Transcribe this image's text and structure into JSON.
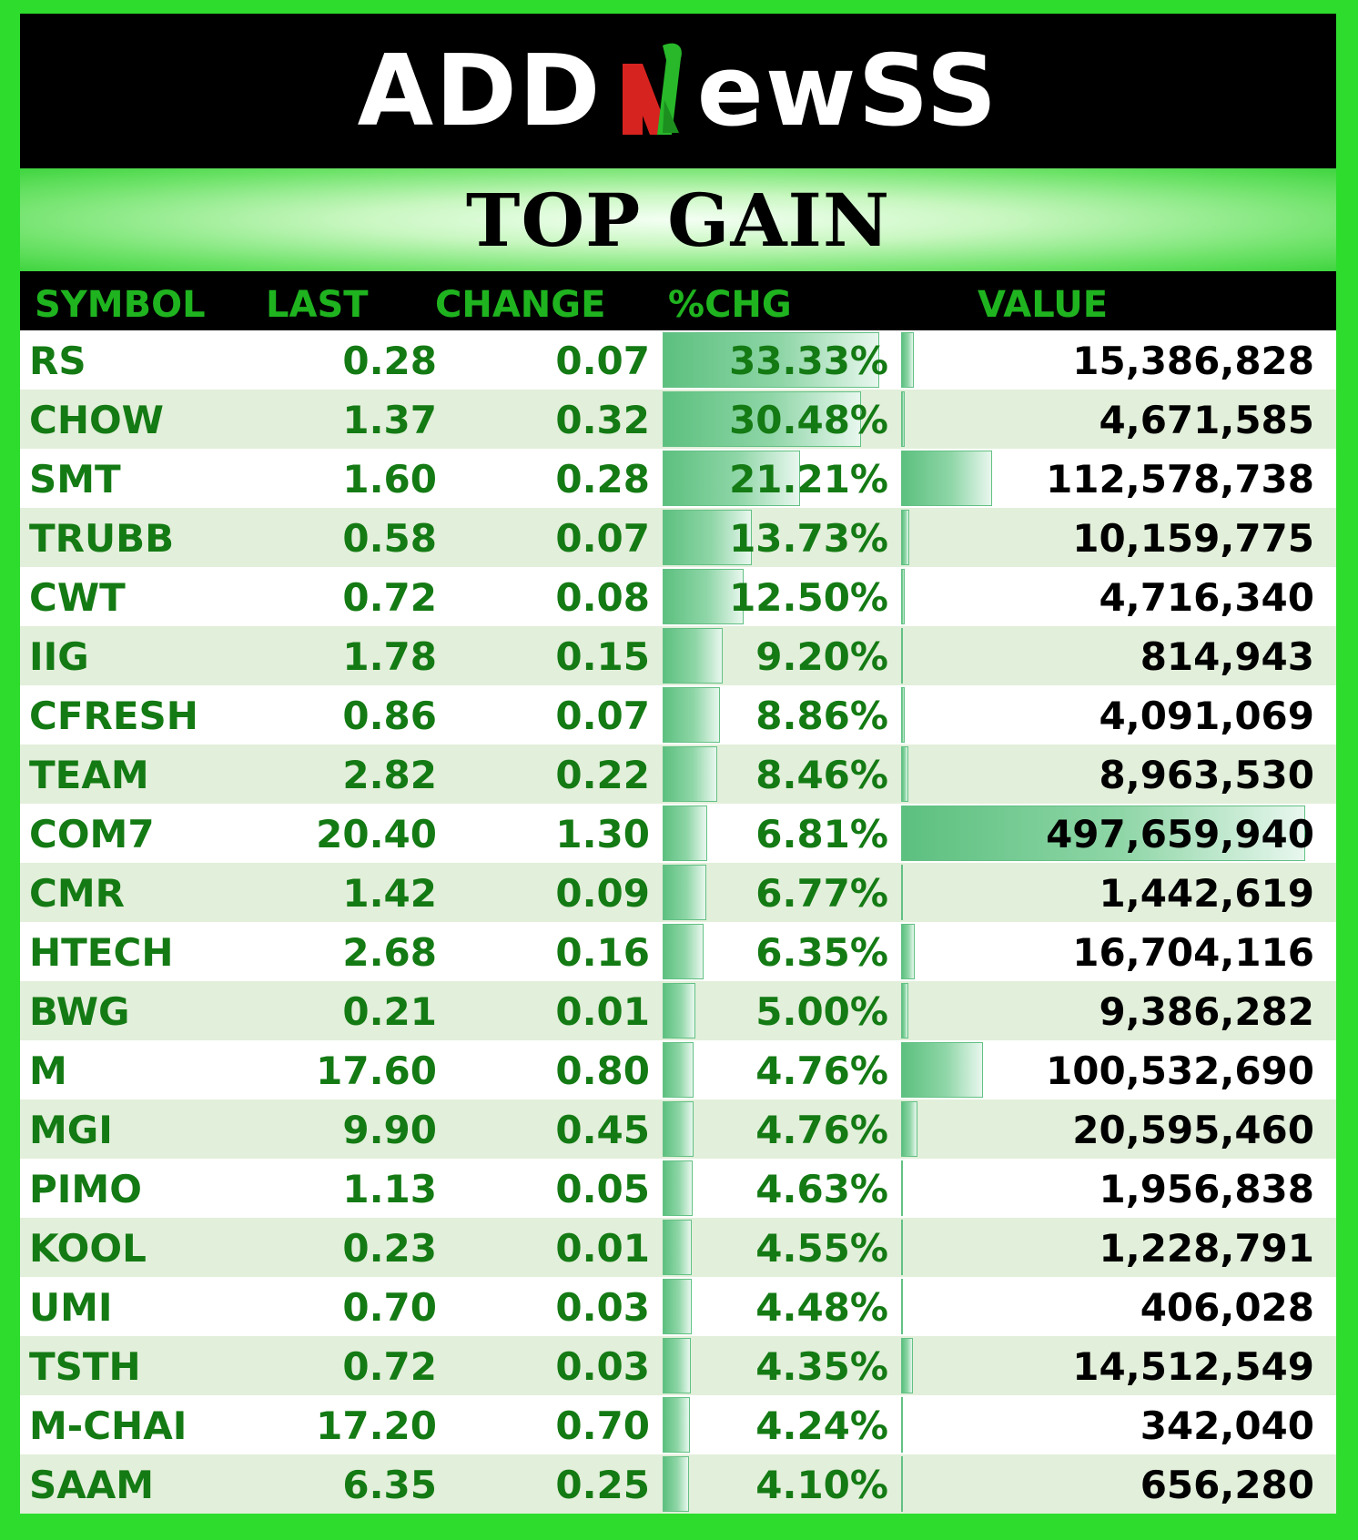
{
  "brand": {
    "logo_text": "ADDNewSS",
    "logo_n_icon": "green-red-n-logo-icon"
  },
  "title": "TOP GAIN",
  "columns": {
    "symbol": "SYMBOL",
    "last": "LAST",
    "change": "CHANGE",
    "pct_chg": "%CHG",
    "value": "VALUE"
  },
  "colors": {
    "background_green": "#2edc2e",
    "header_text": "#1fb41f",
    "row_text": "#147a14",
    "alt_row": "#e2efda",
    "data_bar": "#5cc07f"
  },
  "rows": [
    {
      "symbol": "RS",
      "last": "0.28",
      "change": "0.07",
      "pct_chg": "33.33%",
      "value": "15,386,828",
      "pct_num": 33.33,
      "value_num": 15386828
    },
    {
      "symbol": "CHOW",
      "last": "1.37",
      "change": "0.32",
      "pct_chg": "30.48%",
      "value": "4,671,585",
      "pct_num": 30.48,
      "value_num": 4671585
    },
    {
      "symbol": "SMT",
      "last": "1.60",
      "change": "0.28",
      "pct_chg": "21.21%",
      "value": "112,578,738",
      "pct_num": 21.21,
      "value_num": 112578738
    },
    {
      "symbol": "TRUBB",
      "last": "0.58",
      "change": "0.07",
      "pct_chg": "13.73%",
      "value": "10,159,775",
      "pct_num": 13.73,
      "value_num": 10159775
    },
    {
      "symbol": "CWT",
      "last": "0.72",
      "change": "0.08",
      "pct_chg": "12.50%",
      "value": "4,716,340",
      "pct_num": 12.5,
      "value_num": 4716340
    },
    {
      "symbol": "IIG",
      "last": "1.78",
      "change": "0.15",
      "pct_chg": "9.20%",
      "value": "814,943",
      "pct_num": 9.2,
      "value_num": 814943
    },
    {
      "symbol": "CFRESH",
      "last": "0.86",
      "change": "0.07",
      "pct_chg": "8.86%",
      "value": "4,091,069",
      "pct_num": 8.86,
      "value_num": 4091069
    },
    {
      "symbol": "TEAM",
      "last": "2.82",
      "change": "0.22",
      "pct_chg": "8.46%",
      "value": "8,963,530",
      "pct_num": 8.46,
      "value_num": 8963530
    },
    {
      "symbol": "COM7",
      "last": "20.40",
      "change": "1.30",
      "pct_chg": "6.81%",
      "value": "497,659,940",
      "pct_num": 6.81,
      "value_num": 497659940
    },
    {
      "symbol": "CMR",
      "last": "1.42",
      "change": "0.09",
      "pct_chg": "6.77%",
      "value": "1,442,619",
      "pct_num": 6.77,
      "value_num": 1442619
    },
    {
      "symbol": "HTECH",
      "last": "2.68",
      "change": "0.16",
      "pct_chg": "6.35%",
      "value": "16,704,116",
      "pct_num": 6.35,
      "value_num": 16704116
    },
    {
      "symbol": "BWG",
      "last": "0.21",
      "change": "0.01",
      "pct_chg": "5.00%",
      "value": "9,386,282",
      "pct_num": 5.0,
      "value_num": 9386282
    },
    {
      "symbol": "M",
      "last": "17.60",
      "change": "0.80",
      "pct_chg": "4.76%",
      "value": "100,532,690",
      "pct_num": 4.76,
      "value_num": 100532690
    },
    {
      "symbol": "MGI",
      "last": "9.90",
      "change": "0.45",
      "pct_chg": "4.76%",
      "value": "20,595,460",
      "pct_num": 4.76,
      "value_num": 20595460
    },
    {
      "symbol": "PIMO",
      "last": "1.13",
      "change": "0.05",
      "pct_chg": "4.63%",
      "value": "1,956,838",
      "pct_num": 4.63,
      "value_num": 1956838
    },
    {
      "symbol": "KOOL",
      "last": "0.23",
      "change": "0.01",
      "pct_chg": "4.55%",
      "value": "1,228,791",
      "pct_num": 4.55,
      "value_num": 1228791
    },
    {
      "symbol": "UMI",
      "last": "0.70",
      "change": "0.03",
      "pct_chg": "4.48%",
      "value": "406,028",
      "pct_num": 4.48,
      "value_num": 406028
    },
    {
      "symbol": "TSTH",
      "last": "0.72",
      "change": "0.03",
      "pct_chg": "4.35%",
      "value": "14,512,549",
      "pct_num": 4.35,
      "value_num": 14512549
    },
    {
      "symbol": "M-CHAI",
      "last": "17.20",
      "change": "0.70",
      "pct_chg": "4.24%",
      "value": "342,040",
      "pct_num": 4.24,
      "value_num": 342040
    },
    {
      "symbol": "SAAM",
      "last": "6.35",
      "change": "0.25",
      "pct_chg": "4.10%",
      "value": "656,280",
      "pct_num": 4.1,
      "value_num": 656280
    }
  ]
}
